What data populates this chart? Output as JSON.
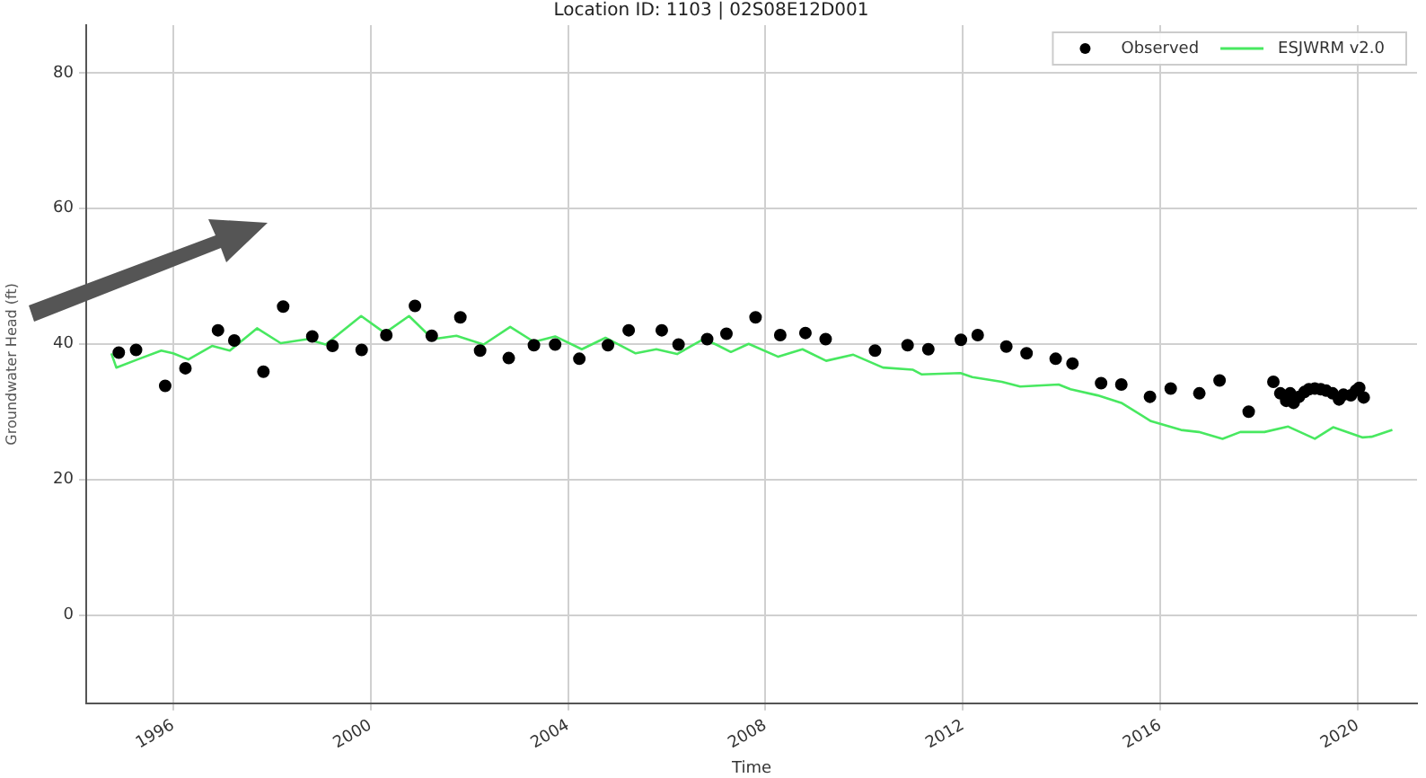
{
  "chart_data": {
    "type": "scatter",
    "title": "Location ID: 1103 | 02S08E12D001",
    "xlabel": "Time",
    "ylabel": "Groundwater Head (ft)",
    "xlim": [
      1994.24,
      2021.2
    ],
    "xticks": [
      1996,
      2000,
      2004,
      2008,
      2012,
      2016,
      2020
    ],
    "ylim": [
      -13,
      87
    ],
    "yticks": [
      0,
      20,
      40,
      60,
      80
    ],
    "grid": true,
    "legend": "top right",
    "series": [
      {
        "name": "Observed",
        "type": "scatter",
        "marker": "circle",
        "color": "#000000",
        "x": [
          1994.9,
          1995.25,
          1995.84,
          1996.25,
          1996.91,
          1997.24,
          1997.83,
          1998.23,
          1998.82,
          1999.23,
          1999.82,
          2000.32,
          2000.9,
          2001.24,
          2001.82,
          2002.22,
          2002.8,
          2003.31,
          2003.74,
          2004.23,
          2004.81,
          2005.23,
          2005.9,
          2006.24,
          2006.82,
          2007.21,
          2007.8,
          2008.3,
          2008.81,
          2009.22,
          2010.22,
          2010.88,
          2011.3,
          2011.96,
          2012.3,
          2012.88,
          2013.29,
          2013.88,
          2014.22,
          2014.8,
          2015.21,
          2015.79,
          2016.21,
          2016.79,
          2017.2,
          2017.79,
          2018.29,
          2018.43,
          2018.55,
          2018.63,
          2018.7,
          2018.81,
          2018.92,
          2019.01,
          2019.13,
          2019.25,
          2019.36,
          2019.49,
          2019.62,
          2019.71,
          2019.86,
          2019.96,
          2020.03,
          2020.12
        ],
        "values": [
          38.7,
          39.1,
          33.8,
          36.4,
          42.0,
          40.5,
          35.9,
          45.5,
          41.1,
          39.7,
          39.1,
          41.3,
          45.6,
          41.2,
          43.9,
          39.0,
          37.9,
          39.8,
          39.9,
          37.8,
          39.8,
          42.0,
          42.0,
          39.9,
          40.7,
          41.5,
          43.9,
          41.3,
          41.6,
          40.7,
          39.0,
          39.8,
          39.2,
          40.6,
          41.3,
          39.6,
          38.6,
          37.8,
          37.1,
          34.2,
          34.0,
          32.2,
          33.4,
          32.7,
          34.6,
          30.0,
          34.4,
          32.7,
          31.6,
          32.7,
          31.3,
          32.2,
          32.9,
          33.3,
          33.4,
          33.3,
          33.1,
          32.7,
          31.8,
          32.5,
          32.4,
          33.1,
          33.5,
          32.1
        ]
      },
      {
        "name": "ESJWRM v2.0",
        "type": "line",
        "marker": "none",
        "line_style": "solid",
        "color": "#48e860",
        "x": [
          1994.75,
          1994.85,
          1995.28,
          1995.76,
          1996.0,
          1996.31,
          1996.79,
          1997.15,
          1997.7,
          1998.18,
          1998.72,
          1999.09,
          1999.81,
          2000.29,
          2000.78,
          2001.26,
          2001.74,
          2002.29,
          2002.83,
          2003.31,
          2003.74,
          2004.28,
          2004.76,
          2005.37,
          2005.79,
          2006.21,
          2006.75,
          2007.0,
          2007.3,
          2007.66,
          2008.26,
          2008.75,
          2009.23,
          2009.78,
          2010.38,
          2010.98,
          2011.16,
          2011.95,
          2012.19,
          2012.79,
          2013.16,
          2013.94,
          2014.18,
          2014.73,
          2015.21,
          2015.81,
          2016.42,
          2016.78,
          2017.26,
          2017.62,
          2018.11,
          2018.59,
          2019.13,
          2019.5,
          2020.1,
          2020.28,
          2020.7
        ],
        "values": [
          38.6,
          36.5,
          37.7,
          39.0,
          38.6,
          37.7,
          39.7,
          39.0,
          42.3,
          40.1,
          40.7,
          39.9,
          44.1,
          41.6,
          44.1,
          40.7,
          41.2,
          39.9,
          42.5,
          40.3,
          41.1,
          39.2,
          40.9,
          38.6,
          39.2,
          38.5,
          40.7,
          39.9,
          38.8,
          40.0,
          38.1,
          39.2,
          37.5,
          38.4,
          36.5,
          36.2,
          35.5,
          35.7,
          35.1,
          34.4,
          33.7,
          34.0,
          33.3,
          32.4,
          31.3,
          28.6,
          27.3,
          27.0,
          26.0,
          27.0,
          27.0,
          27.8,
          26.0,
          27.7,
          26.2,
          26.3,
          27.3
        ]
      }
    ]
  }
}
